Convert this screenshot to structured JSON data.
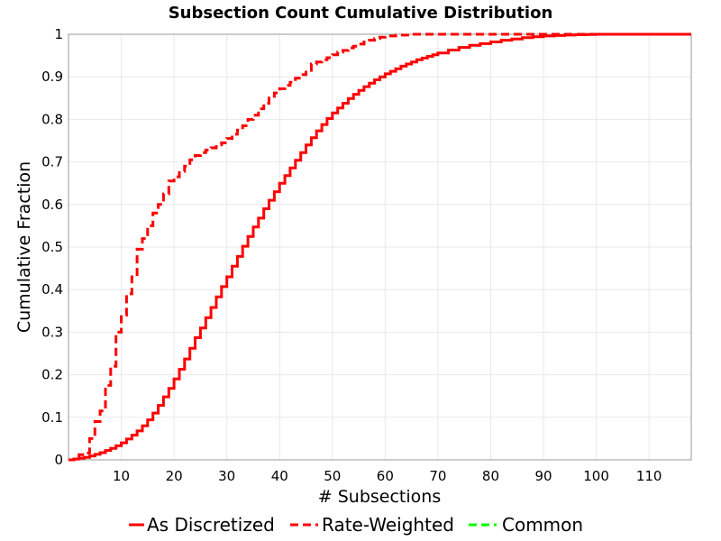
{
  "chart_data": {
    "type": "line",
    "title": "Subsection Count Cumulative Distribution",
    "xlabel": "# Subsections",
    "ylabel": "Cumulative Fraction",
    "xlim": [
      0,
      118
    ],
    "ylim": [
      0,
      1
    ],
    "x_ticks": [
      10,
      20,
      30,
      40,
      50,
      60,
      70,
      80,
      90,
      100,
      110
    ],
    "y_ticks": [
      0,
      0.1,
      0.2,
      0.3,
      0.4,
      0.5,
      0.6,
      0.7,
      0.8,
      0.9,
      1
    ],
    "grid": true,
    "legend_position": "bottom",
    "step": true,
    "series": [
      {
        "name": "As Discretized",
        "color": "#ff0000",
        "dash": "solid",
        "x": [
          0,
          1,
          2,
          3,
          4,
          5,
          6,
          7,
          8,
          9,
          10,
          11,
          12,
          13,
          14,
          15,
          16,
          17,
          18,
          19,
          20,
          21,
          22,
          23,
          24,
          25,
          26,
          27,
          28,
          29,
          30,
          31,
          32,
          33,
          34,
          35,
          36,
          37,
          38,
          39,
          40,
          41,
          42,
          43,
          44,
          45,
          46,
          47,
          48,
          49,
          50,
          51,
          52,
          53,
          54,
          55,
          56,
          57,
          58,
          59,
          60,
          61,
          62,
          63,
          64,
          65,
          66,
          67,
          68,
          69,
          70,
          72,
          74,
          76,
          78,
          80,
          82,
          84,
          86,
          88,
          90,
          92,
          94,
          96,
          98,
          100,
          105,
          110,
          118
        ],
        "y": [
          0,
          0.002,
          0.004,
          0.006,
          0.009,
          0.013,
          0.017,
          0.022,
          0.027,
          0.033,
          0.04,
          0.049,
          0.058,
          0.068,
          0.08,
          0.094,
          0.11,
          0.128,
          0.148,
          0.168,
          0.19,
          0.213,
          0.237,
          0.262,
          0.287,
          0.31,
          0.334,
          0.358,
          0.383,
          0.407,
          0.43,
          0.455,
          0.478,
          0.502,
          0.525,
          0.547,
          0.568,
          0.59,
          0.61,
          0.63,
          0.65,
          0.668,
          0.686,
          0.704,
          0.722,
          0.74,
          0.757,
          0.773,
          0.788,
          0.802,
          0.815,
          0.827,
          0.838,
          0.849,
          0.859,
          0.868,
          0.877,
          0.885,
          0.893,
          0.9,
          0.907,
          0.913,
          0.919,
          0.925,
          0.93,
          0.935,
          0.94,
          0.944,
          0.948,
          0.952,
          0.956,
          0.963,
          0.969,
          0.974,
          0.978,
          0.982,
          0.986,
          0.989,
          0.992,
          0.994,
          0.996,
          0.997,
          0.998,
          0.999,
          0.9995,
          1,
          1,
          1,
          1
        ]
      },
      {
        "name": "Rate-Weighted",
        "color": "#ff0000",
        "dash": "dashed",
        "x": [
          0,
          1,
          2,
          3,
          4,
          5,
          6,
          7,
          8,
          9,
          10,
          11,
          12,
          13,
          14,
          15,
          16,
          17,
          18,
          19,
          20,
          21,
          22,
          23,
          24,
          25,
          26,
          27,
          28,
          29,
          30,
          31,
          32,
          33,
          34,
          35,
          36,
          37,
          38,
          39,
          40,
          41,
          42,
          43,
          44,
          45,
          46,
          47,
          48,
          49,
          50,
          51,
          52,
          53,
          54,
          55,
          56,
          57,
          58,
          59,
          60,
          62,
          65,
          70,
          80,
          100,
          118
        ],
        "y": [
          0,
          0.002,
          0.012,
          0.016,
          0.05,
          0.09,
          0.115,
          0.175,
          0.22,
          0.3,
          0.34,
          0.39,
          0.43,
          0.495,
          0.52,
          0.55,
          0.58,
          0.6,
          0.625,
          0.655,
          0.665,
          0.678,
          0.69,
          0.705,
          0.715,
          0.722,
          0.728,
          0.733,
          0.74,
          0.745,
          0.755,
          0.765,
          0.775,
          0.785,
          0.8,
          0.81,
          0.825,
          0.838,
          0.85,
          0.862,
          0.872,
          0.88,
          0.887,
          0.897,
          0.905,
          0.915,
          0.93,
          0.935,
          0.94,
          0.945,
          0.952,
          0.958,
          0.962,
          0.968,
          0.972,
          0.977,
          0.982,
          0.986,
          0.99,
          0.993,
          0.996,
          0.998,
          1,
          1,
          1,
          1,
          1
        ]
      },
      {
        "name": "Common",
        "color": "#00ff00",
        "dash": "dashed",
        "x": [],
        "y": []
      }
    ]
  }
}
